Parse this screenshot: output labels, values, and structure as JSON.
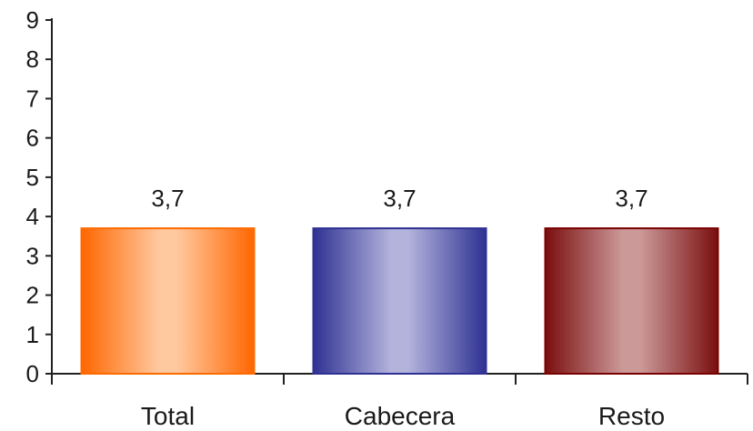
{
  "chart_data": {
    "type": "bar",
    "categories": [
      "Total",
      "Cabecera",
      "Resto"
    ],
    "values": [
      3.7,
      3.7,
      3.7
    ],
    "data_labels": [
      "3,7",
      "3,7",
      "3,7"
    ],
    "yticks": [
      0,
      1,
      2,
      3,
      4,
      5,
      6,
      7,
      8,
      9
    ],
    "ylim": [
      0,
      9
    ],
    "grid": false,
    "legend": "none",
    "bar_colors": [
      {
        "edge": "#ff6600",
        "center": "#ffc9a0",
        "outline": "#ff6a00"
      },
      {
        "edge": "#2e3192",
        "center": "#b3b3dc",
        "outline": "#2e3192"
      },
      {
        "edge": "#7a0e0e",
        "center": "#cc9999",
        "outline": "#7a0000"
      }
    ]
  }
}
